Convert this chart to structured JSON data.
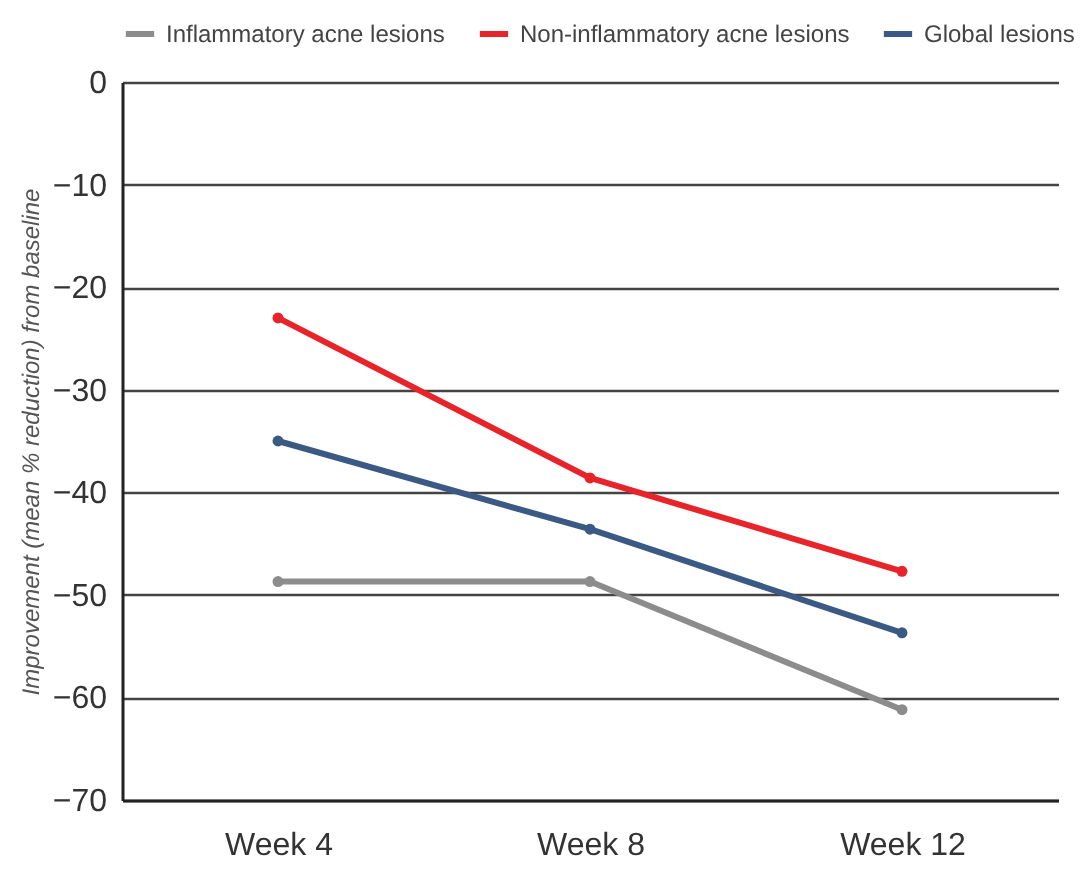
{
  "chart_data": {
    "type": "line",
    "ylabel": "Improvement (mean % reduction) from baseline",
    "categories": [
      "Week 4",
      "Week 8",
      "Week 12"
    ],
    "series": [
      {
        "name": "Inflammatory acne lesions",
        "color": "#8c8c8c",
        "values": [
          -48.7,
          -48.7,
          -61.2
        ]
      },
      {
        "name": "Non-inflammatory acne lesions",
        "color": "#e8242b",
        "values": [
          -23,
          -38.6,
          -47.7
        ]
      },
      {
        "name": "Global lesions",
        "color": "#3a5a85",
        "values": [
          -35,
          -43.6,
          -53.7
        ]
      }
    ],
    "ylim": [
      -70,
      0
    ],
    "yticks": [
      0,
      -10,
      -20,
      -30,
      -40,
      -50,
      -60,
      -70
    ],
    "grid": "y",
    "legend": "top",
    "marker": "circle",
    "line_style": "solid"
  }
}
